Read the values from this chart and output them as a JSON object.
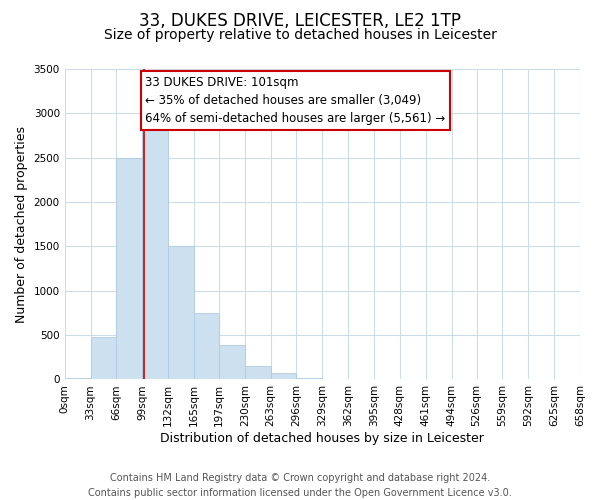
{
  "title": "33, DUKES DRIVE, LEICESTER, LE2 1TP",
  "subtitle": "Size of property relative to detached houses in Leicester",
  "xlabel": "Distribution of detached houses by size in Leicester",
  "ylabel": "Number of detached properties",
  "bin_edges": [
    0,
    33,
    66,
    99,
    132,
    165,
    197,
    230,
    263,
    296,
    329,
    362,
    395,
    428,
    461,
    494,
    526,
    559,
    592,
    625,
    658
  ],
  "bin_labels": [
    "0sqm",
    "33sqm",
    "66sqm",
    "99sqm",
    "132sqm",
    "165sqm",
    "197sqm",
    "230sqm",
    "263sqm",
    "296sqm",
    "329sqm",
    "362sqm",
    "395sqm",
    "428sqm",
    "461sqm",
    "494sqm",
    "526sqm",
    "559sqm",
    "592sqm",
    "625sqm",
    "658sqm"
  ],
  "counts": [
    15,
    480,
    2500,
    2820,
    1500,
    750,
    390,
    150,
    75,
    18,
    5,
    0,
    0,
    0,
    0,
    0,
    0,
    0,
    0,
    0
  ],
  "bar_color": "#cde0f0",
  "bar_edge_color": "#b0cce0",
  "property_line_x": 101,
  "property_line_color": "#cc0000",
  "annotation_line1": "33 DUKES DRIVE: 101sqm",
  "annotation_line2": "← 35% of detached houses are smaller (3,049)",
  "annotation_line3": "64% of semi-detached houses are larger (5,561) →",
  "annotation_box_color": "#ffffff",
  "annotation_box_edge_color": "#cc0000",
  "ylim": [
    0,
    3500
  ],
  "yticks": [
    0,
    500,
    1000,
    1500,
    2000,
    2500,
    3000,
    3500
  ],
  "footer_line1": "Contains HM Land Registry data © Crown copyright and database right 2024.",
  "footer_line2": "Contains public sector information licensed under the Open Government Licence v3.0.",
  "bg_color": "#ffffff",
  "grid_color": "#ccdde8",
  "title_fontsize": 12,
  "subtitle_fontsize": 10,
  "axis_label_fontsize": 9,
  "tick_fontsize": 7.5,
  "annotation_fontsize": 8.5,
  "footer_fontsize": 7
}
